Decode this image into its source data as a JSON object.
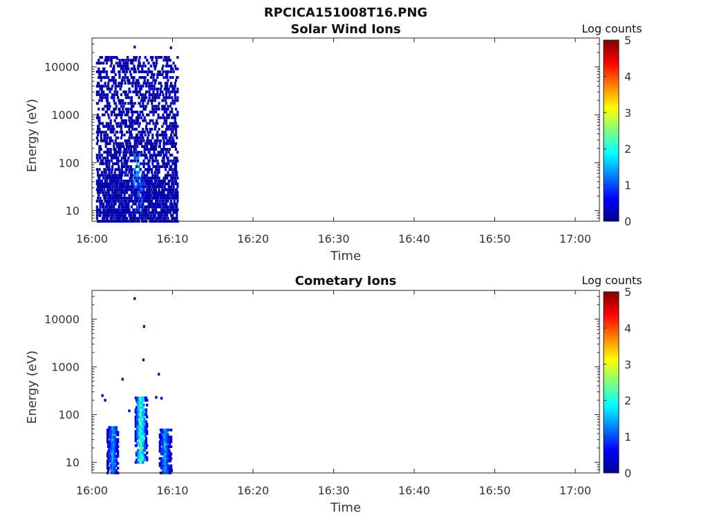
{
  "figure_title": "RPCICA151008T16.PNG",
  "chart_data": [
    {
      "type": "heatmap",
      "title": "Solar Wind Ions",
      "xlabel": "Time",
      "ylabel": "Energy (eV)",
      "y_scale": "log",
      "x_ticks": [
        "16:00",
        "16:10",
        "16:20",
        "16:30",
        "16:40",
        "16:50",
        "17:00"
      ],
      "y_ticks": [
        "10",
        "100",
        "1000",
        "10000"
      ],
      "xlim": [
        "16:00",
        "17:03"
      ],
      "ylim": [
        6,
        40000
      ],
      "colorbar": {
        "label": "Log counts",
        "ticks": [
          "0",
          "1",
          "2",
          "3",
          "4",
          "5"
        ],
        "range": [
          0,
          5
        ],
        "colormap": "jet"
      },
      "data_extent": {
        "time_start": "16:00:30",
        "time_end": "16:10:30",
        "energy_min": 6,
        "energy_max": 25000
      },
      "features": [
        {
          "time": "16:05:30",
          "energy_range": [
            30,
            150
          ],
          "log_counts": 1.8
        },
        {
          "time": "16:06:00",
          "energy_range": [
            10,
            60
          ],
          "log_counts": 1.2
        }
      ]
    },
    {
      "type": "heatmap",
      "title": "Cometary Ions",
      "xlabel": "Time",
      "ylabel": "Energy (eV)",
      "y_scale": "log",
      "x_ticks": [
        "16:00",
        "16:10",
        "16:20",
        "16:30",
        "16:40",
        "16:50",
        "17:00"
      ],
      "y_ticks": [
        "10",
        "100",
        "1000",
        "10000"
      ],
      "xlim": [
        "16:00",
        "17:03"
      ],
      "ylim": [
        6,
        40000
      ],
      "colorbar": {
        "label": "Log counts",
        "ticks": [
          "0",
          "1",
          "2",
          "3",
          "4",
          "5"
        ],
        "range": [
          0,
          5
        ],
        "colormap": "jet"
      },
      "features": [
        {
          "time": "16:02:30",
          "energy_range": [
            6,
            60
          ],
          "log_counts": 1.8
        },
        {
          "time": "16:06:00",
          "energy_range": [
            10,
            250
          ],
          "log_counts": 2.8
        },
        {
          "time": "16:09:00",
          "energy_range": [
            6,
            50
          ],
          "log_counts": 1.8
        }
      ]
    }
  ]
}
